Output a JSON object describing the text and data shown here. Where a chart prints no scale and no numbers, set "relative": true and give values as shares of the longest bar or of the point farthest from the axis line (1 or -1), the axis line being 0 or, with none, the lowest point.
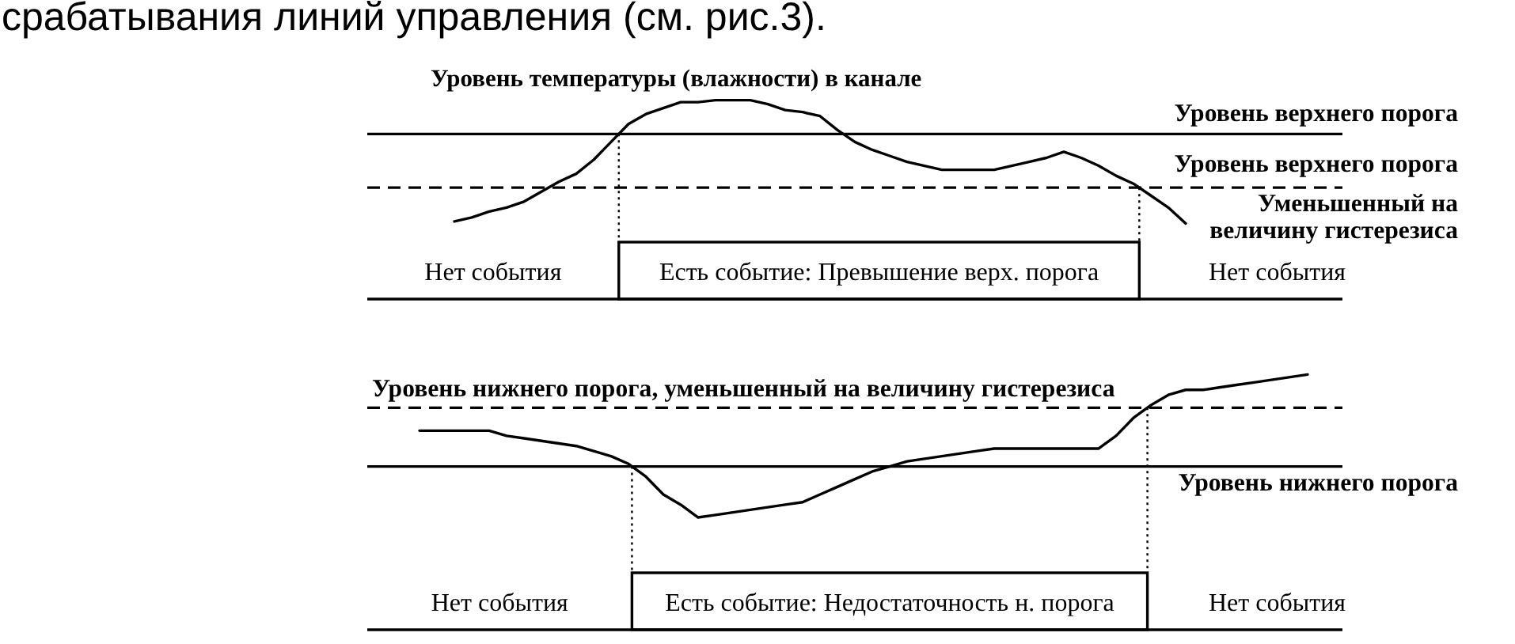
{
  "chart_data": [
    {
      "type": "line",
      "title": "Уровень температуры (влажности) в канале",
      "relative": true,
      "categories": [
        null,
        null,
        null,
        null,
        null,
        null,
        null,
        null,
        null,
        null,
        null,
        null,
        null,
        null,
        null,
        null,
        null,
        null,
        null,
        null,
        null,
        null,
        null,
        null,
        null,
        null,
        null,
        null,
        null,
        null,
        null,
        null,
        null,
        null,
        null,
        null,
        null,
        null,
        null,
        null,
        null,
        null,
        null,
        null,
        null,
        null,
        null,
        null,
        null,
        null,
        null,
        null,
        null,
        null,
        null,
        null,
        null
      ],
      "series": [
        {
          "color": "#000000",
          "values": [
            null,
            null,
            null,
            null,
            null,
            0.39,
            0.41,
            0.44,
            0.46,
            0.49,
            0.54,
            0.59,
            0.63,
            0.7,
            0.79,
            0.88,
            0.93,
            0.96,
            0.99,
            0.99,
            1,
            1,
            1,
            0.98,
            0.95,
            0.94,
            0.92,
            0.85,
            0.79,
            0.75,
            0.72,
            0.69,
            0.67,
            0.65,
            0.65,
            0.65,
            0.65,
            0.67,
            0.69,
            0.71,
            0.74,
            0.71,
            0.67,
            0.62,
            0.58,
            0.52,
            0.46,
            0.38,
            null,
            null,
            null,
            null,
            null,
            null,
            null,
            null,
            null
          ]
        }
      ],
      "ref_lines": [
        {
          "axis": "y",
          "value": 0.83,
          "label": "Уровень верхнего порога",
          "line_style": "solid"
        },
        {
          "axis": "y",
          "value": 0.56,
          "label": "Уровень верхнего порога\nУменьшенный на\nвеличину гистерезиса",
          "line_style": "dashed"
        }
      ],
      "annotations": [
        "срабатывания линий управления (см. рис.3).",
        "Нет события",
        "Есть событие: Превышение верх. порога",
        "Нет события"
      ]
    },
    {
      "type": "line",
      "relative": true,
      "categories": [
        null,
        null,
        null,
        null,
        null,
        null,
        null,
        null,
        null,
        null,
        null,
        null,
        null,
        null,
        null,
        null,
        null,
        null,
        null,
        null,
        null,
        null,
        null,
        null,
        null,
        null,
        null,
        null,
        null,
        null,
        null,
        null,
        null,
        null,
        null,
        null,
        null,
        null,
        null,
        null,
        null,
        null,
        null,
        null,
        null,
        null,
        null,
        null,
        null,
        null,
        null,
        null,
        null,
        null,
        null,
        null,
        null
      ],
      "series": [
        {
          "color": "#000000",
          "values": [
            null,
            null,
            null,
            0.78,
            0.78,
            0.78,
            0.78,
            0.78,
            0.76,
            0.75,
            0.74,
            0.73,
            0.72,
            0.7,
            0.68,
            0.65,
            0.6,
            0.53,
            0.49,
            0.44,
            0.45,
            0.46,
            0.47,
            0.48,
            0.49,
            0.5,
            0.53,
            0.56,
            0.59,
            0.62,
            0.64,
            0.66,
            0.67,
            0.68,
            0.69,
            0.7,
            0.71,
            0.71,
            0.71,
            0.71,
            0.71,
            0.71,
            0.71,
            0.76,
            0.83,
            0.88,
            0.92,
            0.94,
            0.94,
            0.95,
            0.96,
            0.97,
            0.98,
            0.99,
            1,
            null,
            null
          ]
        }
      ],
      "ref_lines": [
        {
          "axis": "y",
          "value": 0.64,
          "label": "Уровень нижнего порога",
          "line_style": "solid"
        },
        {
          "axis": "y",
          "value": 0.87,
          "label": "Уровень нижнего порога, уменьшенный на величину гистерезиса",
          "line_style": "dashed"
        }
      ],
      "annotations": [
        "Нет события",
        "Есть событие: Недостаточность н. порога",
        "Нет события"
      ]
    }
  ]
}
